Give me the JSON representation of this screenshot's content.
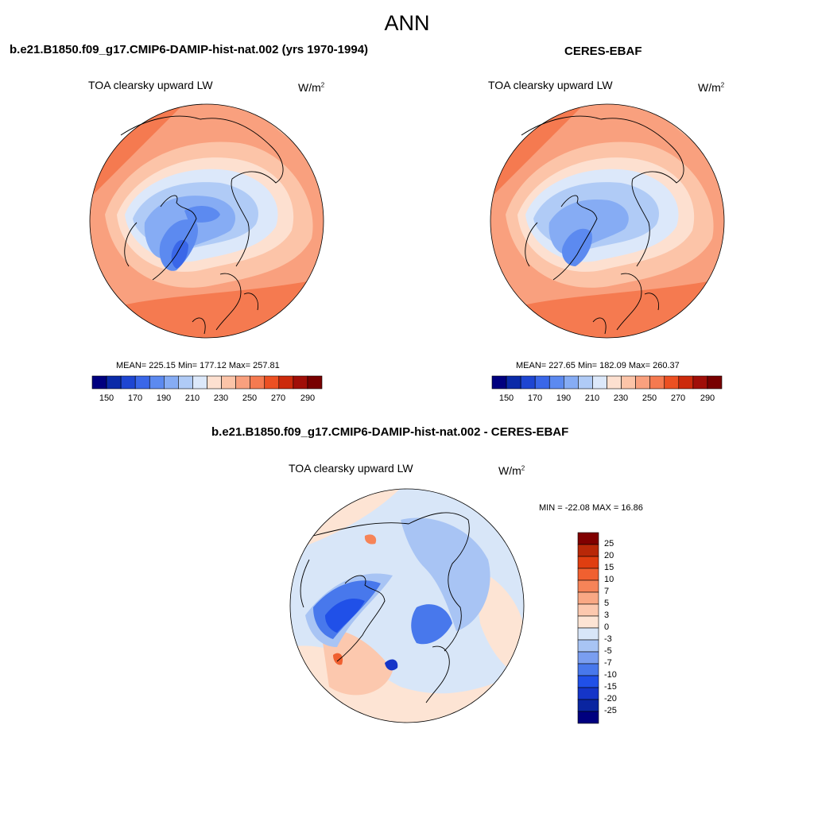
{
  "title": "ANN",
  "colors": {
    "abs_scale": [
      "#00007f",
      "#0a2aa8",
      "#1e46d2",
      "#3a67e8",
      "#5c8af0",
      "#86acf4",
      "#b0cbf6",
      "#dce8fa",
      "#fde0d0",
      "#fcc4a8",
      "#f9a07e",
      "#f57a50",
      "#ec5022",
      "#cc2a0c",
      "#a00e08",
      "#780000"
    ],
    "diff_scale": [
      "#00007f",
      "#0a25a0",
      "#1535c8",
      "#2050e8",
      "#4878ec",
      "#7a9ef0",
      "#a8c4f4",
      "#d8e6f8",
      "#fde4d4",
      "#fcc8ae",
      "#f9a884",
      "#f68458",
      "#f06030",
      "#e03e10",
      "#b82808",
      "#800000"
    ]
  },
  "panels": [
    {
      "title": "b.e21.B1850.f09_g17.CMIP6-DAMIP-hist-nat.002 (yrs 1970-1994)",
      "variable": "TOA clearsky upward LW",
      "units_base": "W/m",
      "units_exp": "2",
      "stats": "MEAN= 225.15  Min= 177.12  Max= 257.81",
      "colorbar_ticks": [
        "150",
        "170",
        "190",
        "210",
        "230",
        "250",
        "270",
        "290"
      ]
    },
    {
      "title": "CERES-EBAF",
      "variable": "TOA clearsky upward LW",
      "units_base": "W/m",
      "units_exp": "2",
      "stats": "MEAN= 227.65  Min= 182.09  Max= 260.37",
      "colorbar_ticks": [
        "150",
        "170",
        "190",
        "210",
        "230",
        "250",
        "270",
        "290"
      ]
    },
    {
      "title": "b.e21.B1850.f09_g17.CMIP6-DAMIP-hist-nat.002 - CERES-EBAF",
      "variable": "TOA clearsky upward LW",
      "units_base": "W/m",
      "units_exp": "2",
      "stats": "MIN = -22.08 MAX =  16.86",
      "colorbar_ticks": [
        "25",
        "20",
        "15",
        "10",
        "7",
        "5",
        "3",
        "0",
        "-3",
        "-5",
        "-7",
        "-10",
        "-15",
        "-20",
        "-25"
      ]
    }
  ]
}
